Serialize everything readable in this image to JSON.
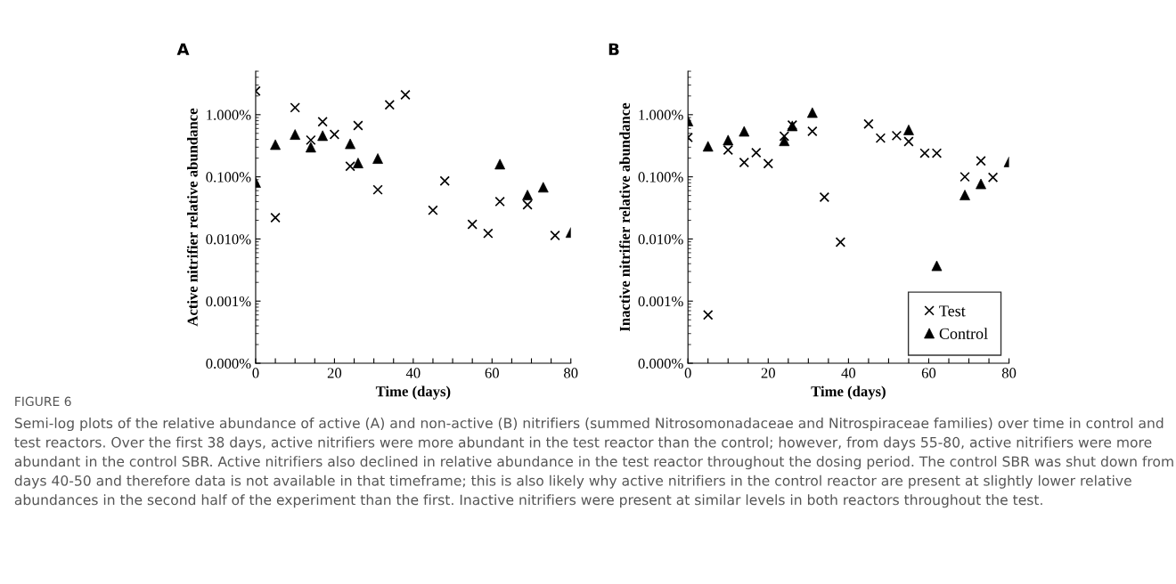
{
  "chart_data": [
    {
      "type": "scatter",
      "title": "A",
      "xlabel": "Time (days)",
      "ylabel": "Active nitrifier relative abundance",
      "log": "y",
      "legend": false,
      "xlim": [
        0,
        80
      ],
      "xticks": [
        0,
        {
          "value": 5,
          "label": null
        },
        {
          "value": 10,
          "label": null
        },
        {
          "value": 15,
          "label": null
        },
        20,
        {
          "value": 25,
          "label": null
        },
        {
          "value": 30,
          "label": null
        },
        {
          "value": 35,
          "label": null
        },
        40,
        {
          "value": 45,
          "label": null
        },
        {
          "value": 50,
          "label": null
        },
        {
          "value": 55,
          "label": null
        },
        60,
        {
          "value": 65,
          "label": null
        },
        {
          "value": 70,
          "label": null
        },
        {
          "value": 75,
          "label": null
        },
        80
      ],
      "ylim": [
        0.0001,
        5
      ],
      "yticks": [
        {
          "value": 0.0001,
          "label": "0.000%"
        },
        {
          "value": 0.001,
          "label": "0.001%"
        },
        {
          "value": 0.01,
          "label": "0.010%"
        },
        {
          "value": 0.1,
          "label": "0.100%"
        },
        {
          "value": 1,
          "label": "1.000%"
        }
      ],
      "series": [
        {
          "color": "#000000",
          "marker": "cross",
          "x": [
            0,
            5,
            10,
            14,
            17,
            20,
            24,
            26,
            31,
            34,
            38,
            45,
            48,
            55,
            59,
            62,
            69,
            76
          ],
          "values": [
            2.4,
            0.022,
            1.3,
            0.39,
            0.77,
            0.48,
            0.148,
            0.67,
            0.062,
            1.44,
            2.09,
            0.029,
            0.086,
            0.0172,
            0.0123,
            0.04,
            0.0355,
            0.0114
          ]
        },
        {
          "color": "#000000",
          "marker": "triangle",
          "x": [
            0,
            5,
            10,
            14,
            17,
            24,
            26,
            31,
            62,
            69,
            73,
            80
          ],
          "values": [
            0.081,
            0.33,
            0.48,
            0.3,
            0.46,
            0.34,
            0.167,
            0.197,
            0.16,
            0.051,
            0.068,
            0.0127
          ]
        }
      ],
      "annotations": [
        "FIGURE 6",
        "Semi-log plots of the relative abundance of active (A) and non-active (B) nitrifiers (summed Nitrosomonadaceae and Nitrospiraceae families) over time in control and test reactors. Over the first 38 days, active nitrifiers were more abundant in the test reactor than the control; however, from days 55-80, active nitrifiers were more abundant in the control SBR. Active nitrifiers also declined in relative abundance in the test reactor throughout the dosing period. The control SBR was shut down from days 40-50 and therefore data is not available in that timeframe; this is also likely why active nitrifiers in the control reactor are present at slightly lower relative abundances in the second half of the experiment than the first. Inactive nitrifiers were present at similar levels in both reactors throughout the test."
      ]
    },
    {
      "type": "scatter",
      "title": "B",
      "xlabel": "Time (days)",
      "ylabel": "Inactive nitrifier relative abundance",
      "log": "y",
      "legend": "bottom right",
      "xlim": [
        0,
        80
      ],
      "xticks": [
        0,
        {
          "value": 5,
          "label": null
        },
        {
          "value": 10,
          "label": null
        },
        {
          "value": 15,
          "label": null
        },
        20,
        {
          "value": 25,
          "label": null
        },
        {
          "value": 30,
          "label": null
        },
        {
          "value": 35,
          "label": null
        },
        40,
        {
          "value": 45,
          "label": null
        },
        {
          "value": 50,
          "label": null
        },
        {
          "value": 55,
          "label": null
        },
        60,
        {
          "value": 65,
          "label": null
        },
        {
          "value": 70,
          "label": null
        },
        {
          "value": 75,
          "label": null
        },
        80
      ],
      "ylim": [
        0.0001,
        5
      ],
      "yticks": [
        {
          "value": 0.0001,
          "label": "0.000%"
        },
        {
          "value": 0.001,
          "label": "0.001%"
        },
        {
          "value": 0.01,
          "label": "0.010%"
        },
        {
          "value": 0.1,
          "label": "0.100%"
        },
        {
          "value": 1,
          "label": "1.000%"
        }
      ],
      "series": [
        {
          "name": "Test",
          "color": "#000000",
          "marker": "cross",
          "x": [
            0,
            5,
            10,
            14,
            17,
            20,
            24,
            26,
            31,
            34,
            38,
            45,
            48,
            52,
            55,
            59,
            62,
            69,
            73,
            76
          ],
          "values": [
            0.43,
            0.0006,
            0.27,
            0.17,
            0.245,
            0.163,
            0.45,
            0.68,
            0.54,
            0.047,
            0.0089,
            0.71,
            0.42,
            0.46,
            0.37,
            0.24,
            0.24,
            0.1,
            0.18,
            0.098
          ]
        },
        {
          "name": "Control",
          "color": "#000000",
          "marker": "triangle",
          "x": [
            0,
            5,
            10,
            14,
            24,
            26,
            31,
            55,
            62,
            69,
            73,
            80
          ],
          "values": [
            0.79,
            0.31,
            0.39,
            0.54,
            0.38,
            0.66,
            1.08,
            0.57,
            0.0037,
            0.051,
            0.077,
            0.174
          ]
        }
      ]
    }
  ]
}
